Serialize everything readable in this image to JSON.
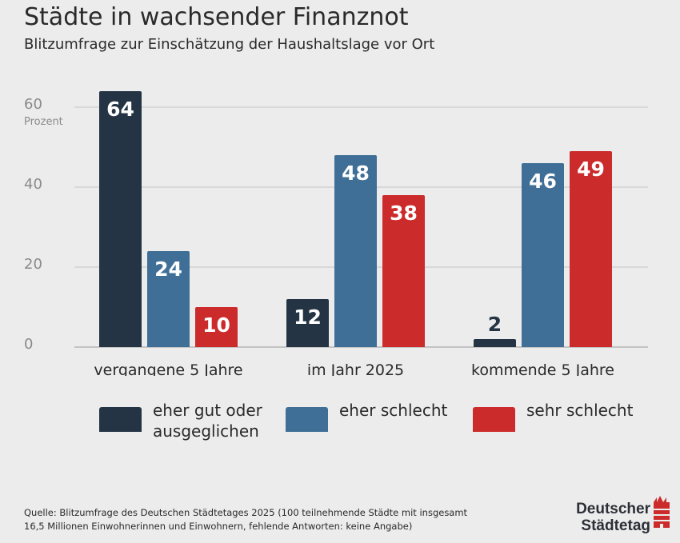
{
  "header": {
    "title": "Städte in wachsender Finanznot",
    "subtitle": "Blitzumfrage zur Einschätzung der Haushaltslage vor Ort"
  },
  "chart_data": {
    "type": "bar",
    "categories": [
      "vergangene 5 Jahre",
      "im Jahr 2025",
      "kommende 5 Jahre"
    ],
    "series": [
      {
        "name": "eher gut oder ausgeglichen",
        "values": [
          64,
          12,
          2
        ],
        "color": "#243444"
      },
      {
        "name": "eher schlecht",
        "values": [
          24,
          48,
          46
        ],
        "color": "#3f6f96"
      },
      {
        "name": "sehr schlecht",
        "values": [
          10,
          38,
          49
        ],
        "color": "#cc2b2b"
      }
    ],
    "ylabel": "Prozent",
    "yticks": [
      0,
      20,
      40,
      60
    ],
    "ylim": [
      0,
      60
    ],
    "grid": true,
    "legend": "bottom"
  },
  "legend": {
    "items": [
      {
        "line1": "eher gut oder",
        "line2": "ausgeglichen",
        "color": "#243444"
      },
      {
        "line1": "eher schlecht",
        "line2": "",
        "color": "#3f6f96"
      },
      {
        "line1": "sehr schlecht",
        "line2": "",
        "color": "#cc2b2b"
      }
    ]
  },
  "footer": {
    "source_line1": "Quelle: Blitzumfrage des Deutschen Städtetages 2025 (100 teilnehmende Städte mit insgesamt",
    "source_line2": "16,5 Millionen Einwohnerinnen und Einwohnern, fehlende Antworten: keine Angabe)",
    "logo_line1": "Deutscher",
    "logo_line2": "Städtetag",
    "logo_icon": "city-crest-icon",
    "logo_color": "#cc2b2b"
  }
}
